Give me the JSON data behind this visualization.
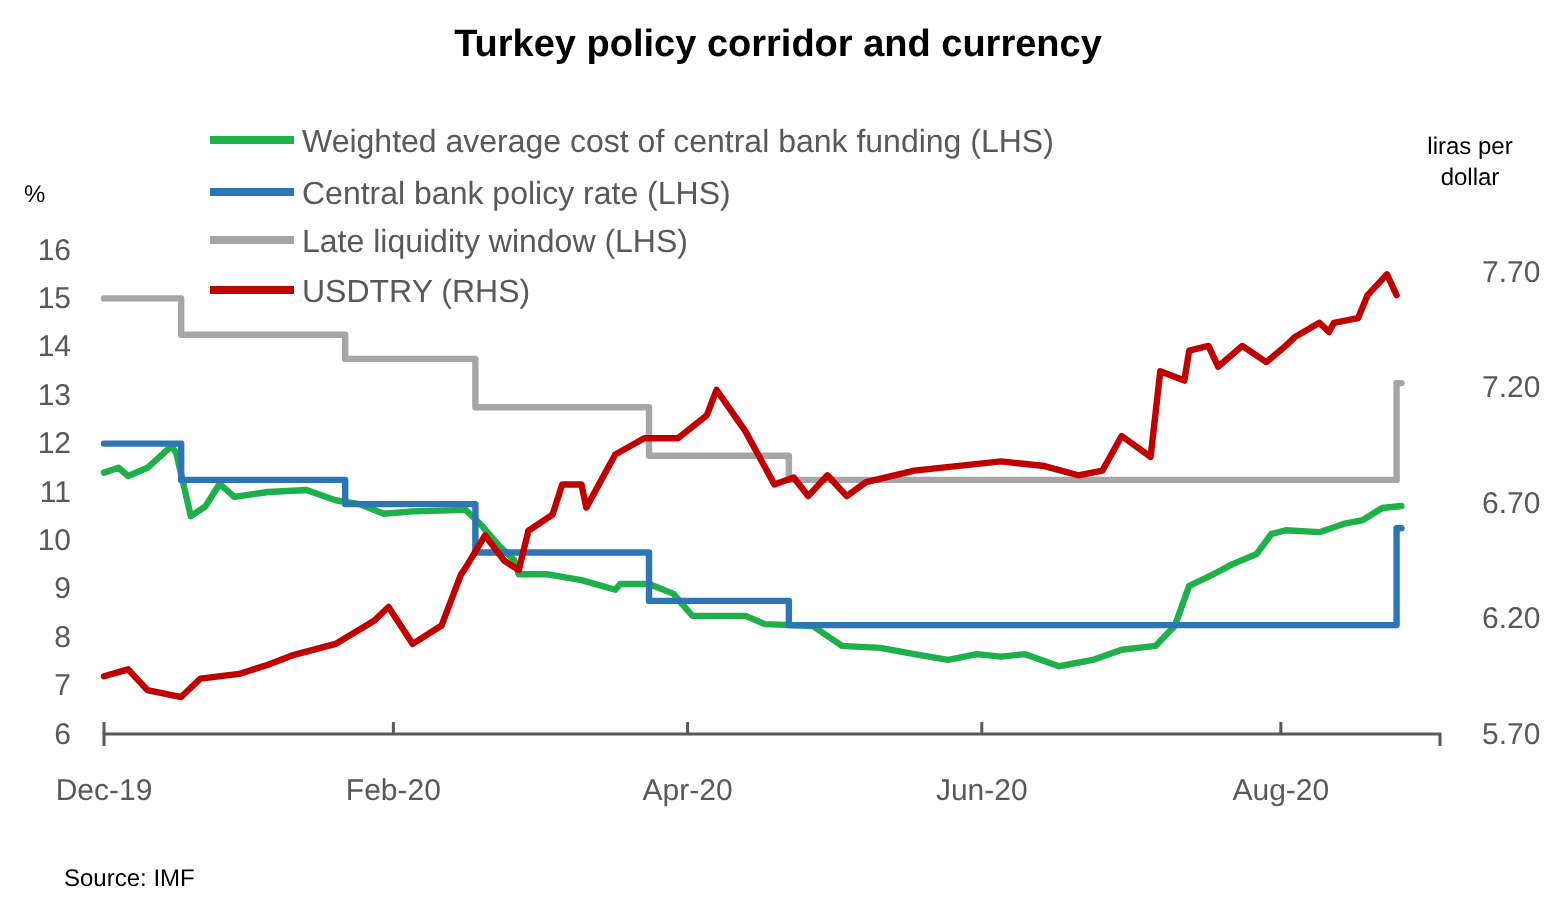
{
  "chart_data": {
    "type": "line",
    "title": "Turkey policy corridor and currency",
    "ylabel": "%",
    "y2label": "liras per dollar",
    "annotations": [
      "Source: IMF"
    ],
    "legend": "top left",
    "grid": false,
    "xlim": [
      "2019-12-31",
      "2020-10-03"
    ],
    "xticks": [
      {
        "value": "2019-12-31",
        "label": "Dec-19"
      },
      {
        "value": "2020-02-29",
        "label": "Feb-20"
      },
      {
        "value": "2020-04-30",
        "label": "Apr-20"
      },
      {
        "value": "2020-06-30",
        "label": "Jun-20"
      },
      {
        "value": "2020-08-31",
        "label": "Aug-20"
      }
    ],
    "ylim": [
      6,
      16
    ],
    "yticks": [
      6,
      7,
      8,
      9,
      10,
      11,
      12,
      13,
      14,
      15,
      16
    ],
    "y2lim": [
      5.7,
      7.7
    ],
    "y2ticks": [
      {
        "value": 5.7,
        "label": "5.70"
      },
      {
        "value": 6.2,
        "label": "6.20"
      },
      {
        "value": 6.7,
        "label": "6.70"
      },
      {
        "value": 7.2,
        "label": "7.20"
      },
      {
        "value": 7.7,
        "label": "7.70"
      }
    ],
    "series": [
      {
        "name": "Weighted average cost of central bank funding (LHS)",
        "color": "#1eb04b",
        "x": [
          "2019-12-31",
          "2020-01-03",
          "2020-01-05",
          "2020-01-09",
          "2020-01-14",
          "2020-01-15",
          "2020-01-18",
          "2020-01-21",
          "2020-01-24",
          "2020-01-27",
          "2020-02-03",
          "2020-02-11",
          "2020-02-17",
          "2020-02-22",
          "2020-02-27",
          "2020-03-04",
          "2020-03-15",
          "2020-03-18",
          "2020-03-22",
          "2020-03-25",
          "2020-03-26",
          "2020-04-01",
          "2020-04-08",
          "2020-04-15",
          "2020-04-16",
          "2020-04-22",
          "2020-04-27",
          "2020-05-01",
          "2020-05-12",
          "2020-05-16",
          "2020-05-26",
          "2020-06-01",
          "2020-06-09",
          "2020-06-16",
          "2020-06-23",
          "2020-06-29",
          "2020-07-04",
          "2020-07-09",
          "2020-07-16",
          "2020-07-23",
          "2020-07-29",
          "2020-08-05",
          "2020-08-09",
          "2020-08-12",
          "2020-08-17",
          "2020-08-21",
          "2020-08-26",
          "2020-08-29",
          "2020-09-01",
          "2020-09-08",
          "2020-09-13",
          "2020-09-17",
          "2020-09-21",
          "2020-09-25"
        ],
        "values": [
          11.4,
          11.5,
          11.33,
          11.5,
          11.95,
          11.8,
          10.5,
          10.7,
          11.17,
          10.9,
          11.0,
          11.04,
          10.83,
          10.75,
          10.55,
          10.6,
          10.63,
          10.34,
          9.88,
          9.6,
          9.3,
          9.3,
          9.18,
          8.98,
          9.1,
          9.1,
          8.9,
          8.44,
          8.44,
          8.27,
          8.23,
          7.82,
          7.78,
          7.65,
          7.53,
          7.65,
          7.6,
          7.65,
          7.4,
          7.53,
          7.74,
          7.82,
          8.23,
          9.06,
          9.3,
          9.51,
          9.72,
          10.13,
          10.21,
          10.17,
          10.34,
          10.42,
          10.67,
          10.71
        ]
      },
      {
        "name": "Central bank policy rate (LHS)",
        "type": "step",
        "color": "#2e75b6",
        "x": [
          "2019-12-31",
          "2020-01-16",
          "2020-02-19",
          "2020-03-17",
          "2020-04-22",
          "2020-05-21",
          "2020-09-24",
          "2020-09-25"
        ],
        "values": [
          12,
          11.25,
          10.75,
          9.75,
          8.75,
          8.25,
          10.25,
          10.25
        ]
      },
      {
        "name": "Late liquidity window (LHS)",
        "type": "step",
        "color": "#a6a6a6",
        "x": [
          "2019-12-31",
          "2020-01-16",
          "2020-02-19",
          "2020-03-17",
          "2020-04-22",
          "2020-05-21",
          "2020-09-24",
          "2020-09-25"
        ],
        "values": [
          15,
          14.25,
          13.75,
          12.75,
          11.75,
          11.25,
          13.25,
          13.25
        ]
      },
      {
        "name": "USDTRY (RHS)",
        "axis": "y2",
        "color": "#c00000",
        "x": [
          "2019-12-31",
          "2020-01-05",
          "2020-01-09",
          "2020-01-16",
          "2020-01-20",
          "2020-01-28",
          "2020-02-03",
          "2020-02-08",
          "2020-02-17",
          "2020-02-25",
          "2020-02-28",
          "2020-03-04",
          "2020-03-10",
          "2020-03-14",
          "2020-03-15",
          "2020-03-19",
          "2020-03-23",
          "2020-03-26",
          "2020-03-28",
          "2020-04-02",
          "2020-04-04",
          "2020-04-08",
          "2020-04-09",
          "2020-04-15",
          "2020-04-21",
          "2020-04-28",
          "2020-05-04",
          "2020-05-06",
          "2020-05-12",
          "2020-05-18",
          "2020-05-22",
          "2020-05-25",
          "2020-05-29",
          "2020-06-02",
          "2020-06-06",
          "2020-06-16",
          "2020-07-04",
          "2020-07-13",
          "2020-07-20",
          "2020-07-25",
          "2020-07-29",
          "2020-08-04",
          "2020-08-06",
          "2020-08-11",
          "2020-08-12",
          "2020-08-16",
          "2020-08-18",
          "2020-08-23",
          "2020-08-28",
          "2020-09-01",
          "2020-09-03",
          "2020-09-08",
          "2020-09-10",
          "2020-09-11",
          "2020-09-16",
          "2020-09-18",
          "2020-09-22",
          "2020-09-24"
        ],
        "values": [
          5.95,
          5.98,
          5.89,
          5.86,
          5.94,
          5.96,
          6.0,
          6.04,
          6.09,
          6.19,
          6.25,
          6.09,
          6.17,
          6.39,
          6.42,
          6.56,
          6.45,
          6.41,
          6.58,
          6.65,
          6.78,
          6.78,
          6.68,
          6.91,
          6.98,
          6.98,
          7.08,
          7.19,
          7.01,
          6.78,
          6.81,
          6.73,
          6.82,
          6.73,
          6.79,
          6.84,
          6.88,
          6.86,
          6.82,
          6.84,
          6.99,
          6.9,
          7.27,
          7.23,
          7.36,
          7.38,
          7.29,
          7.38,
          7.31,
          7.38,
          7.42,
          7.48,
          7.44,
          7.48,
          7.5,
          7.6,
          7.69,
          7.6
        ]
      }
    ]
  }
}
